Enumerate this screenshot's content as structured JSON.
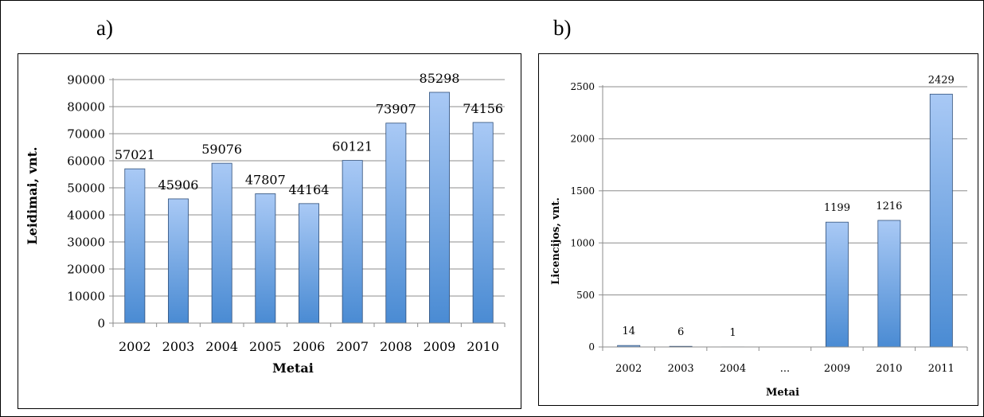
{
  "panels": {
    "a_label": "a)",
    "b_label": "b)"
  },
  "chart_data": [
    {
      "type": "bar",
      "title": "",
      "xlabel": "Metai",
      "ylabel": "Leidimai, vnt.",
      "categories": [
        "2002",
        "2003",
        "2004",
        "2005",
        "2006",
        "2007",
        "2008",
        "2009",
        "2010"
      ],
      "values": [
        57021,
        45906,
        59076,
        47807,
        44164,
        60121,
        73907,
        85298,
        74156
      ],
      "data_labels": [
        "57021",
        "45906",
        "59076",
        "47807",
        "44164",
        "60121",
        "73907",
        "85298",
        "74156"
      ],
      "yticks": [
        "0",
        "10000",
        "20000",
        "30000",
        "40000",
        "50000",
        "60000",
        "70000",
        "80000",
        "90000"
      ],
      "ylim": [
        0,
        90000
      ],
      "grid": true,
      "legend": "none",
      "bar_color_top": "#a9c9f5",
      "bar_color_bottom": "#4a8bd3"
    },
    {
      "type": "bar",
      "title": "",
      "xlabel": "Metai",
      "ylabel": "Licencijos, vnt.",
      "categories": [
        "2002",
        "2003",
        "2004",
        "...",
        "2009",
        "2010",
        "2011"
      ],
      "values": [
        14,
        6,
        1,
        0,
        1199,
        1216,
        2429
      ],
      "data_labels": [
        "14",
        "6",
        "1",
        "",
        "1199",
        "1216",
        "2429"
      ],
      "yticks": [
        "0",
        "500",
        "1000",
        "1500",
        "2000",
        "2500"
      ],
      "ylim": [
        0,
        2500
      ],
      "grid": true,
      "legend": "none",
      "bar_color_top": "#a9c9f5",
      "bar_color_bottom": "#4a8bd3"
    }
  ]
}
